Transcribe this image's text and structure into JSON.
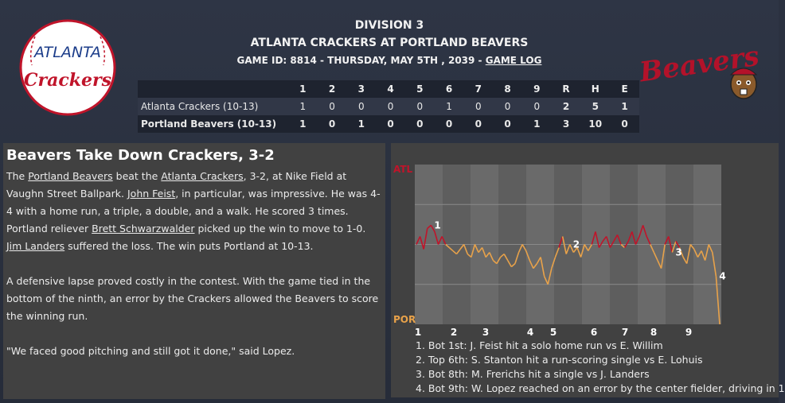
{
  "header": {
    "division": "DIVISION 3",
    "matchup": "ATLANTA CRACKERS AT PORTLAND BEAVERS",
    "game_info": "GAME ID: 8814 - THURSDAY, MAY 5TH , 2039 - ",
    "game_log_link": "GAME LOG"
  },
  "logos": {
    "away_logo_text_top": "ATLANTA",
    "away_logo_text_bottom": "Crackers",
    "home_logo_text": "Beavers"
  },
  "linescore": {
    "headers": [
      "1",
      "2",
      "3",
      "4",
      "5",
      "6",
      "7",
      "8",
      "9",
      "R",
      "H",
      "E"
    ],
    "teams": [
      {
        "name": "Atlanta Crackers (10-13)",
        "innings": [
          "1",
          "0",
          "0",
          "0",
          "0",
          "1",
          "0",
          "0",
          "0"
        ],
        "r": "2",
        "h": "5",
        "e": "1"
      },
      {
        "name": "Portland Beavers (10-13)",
        "innings": [
          "1",
          "0",
          "1",
          "0",
          "0",
          "0",
          "0",
          "0",
          "1"
        ],
        "r": "3",
        "h": "10",
        "e": "0"
      }
    ]
  },
  "article": {
    "headline": "Beavers Take Down Crackers, 3-2",
    "p1_a": "The ",
    "p1_link1": "Portland Beavers",
    "p1_b": " beat the ",
    "p1_link2": "Atlanta Crackers",
    "p1_c": ", 3-2, at Nike Field at Vaughn Street Ballpark. ",
    "p1_link3": "John Feist",
    "p1_d": ", in particular, was impressive. He was 4-4 with a home run, a triple, a double, and a walk. He scored 3 times. Portland reliever ",
    "p1_link4": "Brett Schwarzwalder",
    "p1_e": " picked up the win to move to 1-0. ",
    "p1_link5": "Jim Landers",
    "p1_f": " suffered the loss. The win puts Portland at 10-13.",
    "p2": "A defensive lapse proved costly in the contest. With the game tied in the bottom of the ninth, an error by the Crackers allowed the Beavers to score the winning run.",
    "p3": "\"We faced good pitching and still got it done,\" said Lopez."
  },
  "win_prob_chart": {
    "label_top": "ATL",
    "label_bottom": "POR",
    "color_atl": "#c0142a",
    "color_por": "#e8a24a",
    "innings": [
      "1",
      "2",
      "3",
      "4",
      "5",
      "6",
      "7",
      "8",
      "9"
    ],
    "markers": [
      "1",
      "2",
      "3",
      "4"
    ]
  },
  "chart_data": {
    "type": "line",
    "ylim": [
      0,
      1
    ],
    "series": [
      {
        "values": [
          0.5,
          0.55,
          0.47,
          0.6,
          0.62,
          0.58,
          0.5,
          0.55,
          0.5,
          0.48,
          0.46,
          0.44,
          0.47,
          0.5,
          0.44,
          0.42,
          0.5,
          0.45,
          0.48,
          0.42,
          0.45,
          0.4,
          0.38,
          0.42,
          0.44,
          0.4,
          0.36,
          0.38,
          0.45,
          0.5,
          0.46,
          0.4,
          0.35,
          0.38,
          0.42,
          0.3,
          0.25,
          0.35,
          0.42,
          0.48,
          0.55,
          0.44,
          0.5,
          0.45,
          0.48,
          0.42,
          0.5,
          0.46,
          0.5,
          0.58,
          0.48,
          0.52,
          0.55,
          0.48,
          0.52,
          0.56,
          0.5,
          0.48,
          0.52,
          0.58,
          0.5,
          0.55,
          0.62,
          0.55,
          0.5,
          0.45,
          0.4,
          0.35,
          0.5,
          0.55,
          0.45,
          0.52,
          0.48,
          0.42,
          0.38,
          0.5,
          0.47,
          0.42,
          0.46,
          0.4,
          0.5,
          0.45,
          0.3,
          0.0
        ]
      }
    ]
  },
  "notes": [
    "1. Bot 1st: J. Feist hit a solo home run vs E. Willim",
    "2. Top 6th: S. Stanton hit a run-scoring single vs E. Lohuis",
    "3. Bot 8th: M. Frerichs hit a single vs J. Landers",
    "4. Bot 9th: W. Lopez reached on an error by the center fielder, driving in 1"
  ]
}
